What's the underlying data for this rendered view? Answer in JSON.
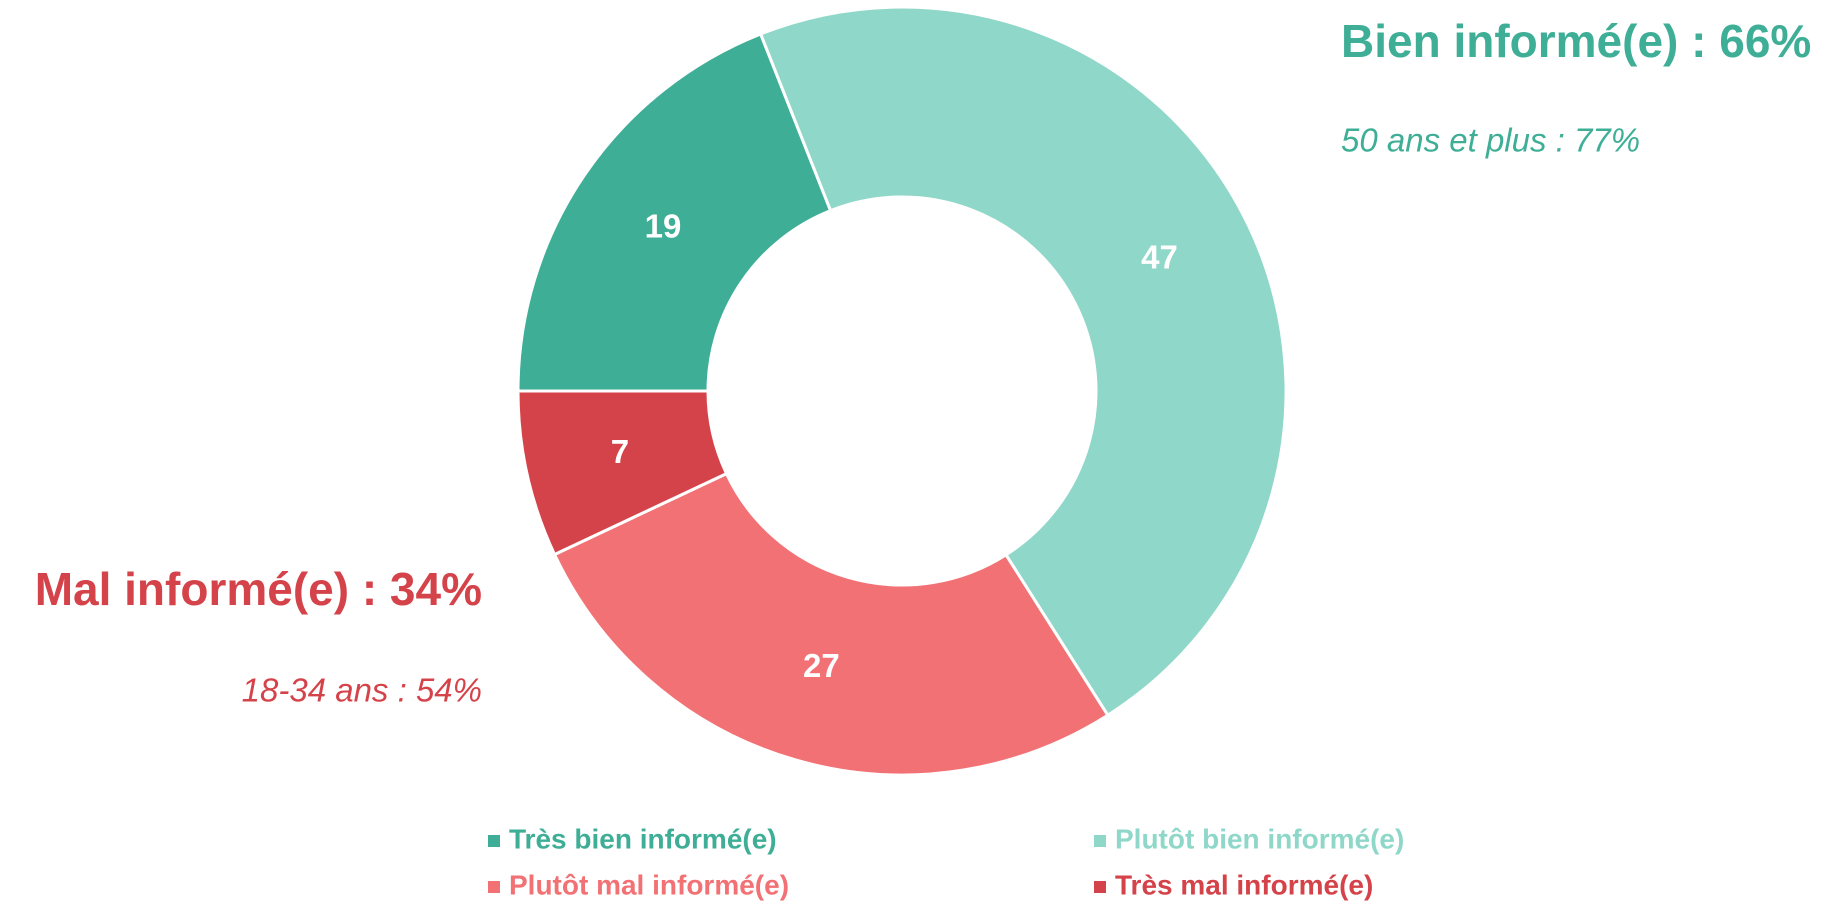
{
  "chart_data": {
    "type": "donut",
    "categories": [
      "Très bien informé(e)",
      "Plutôt bien informé(e)",
      "Plutôt mal informé(e)",
      "Très mal informé(e)"
    ],
    "values": [
      19,
      47,
      27,
      7
    ],
    "colors": [
      "#3fae96",
      "#8fd7c9",
      "#f27174",
      "#d5434a"
    ],
    "annotations": [
      {
        "title": "Bien informé(e) : 66%",
        "subtitle": "50 ans et plus : 77%",
        "color": "#3fae96"
      },
      {
        "title": "Mal informé(e) : 34%",
        "subtitle": "18-34 ans : 54%",
        "color": "#d5434a"
      }
    ]
  }
}
